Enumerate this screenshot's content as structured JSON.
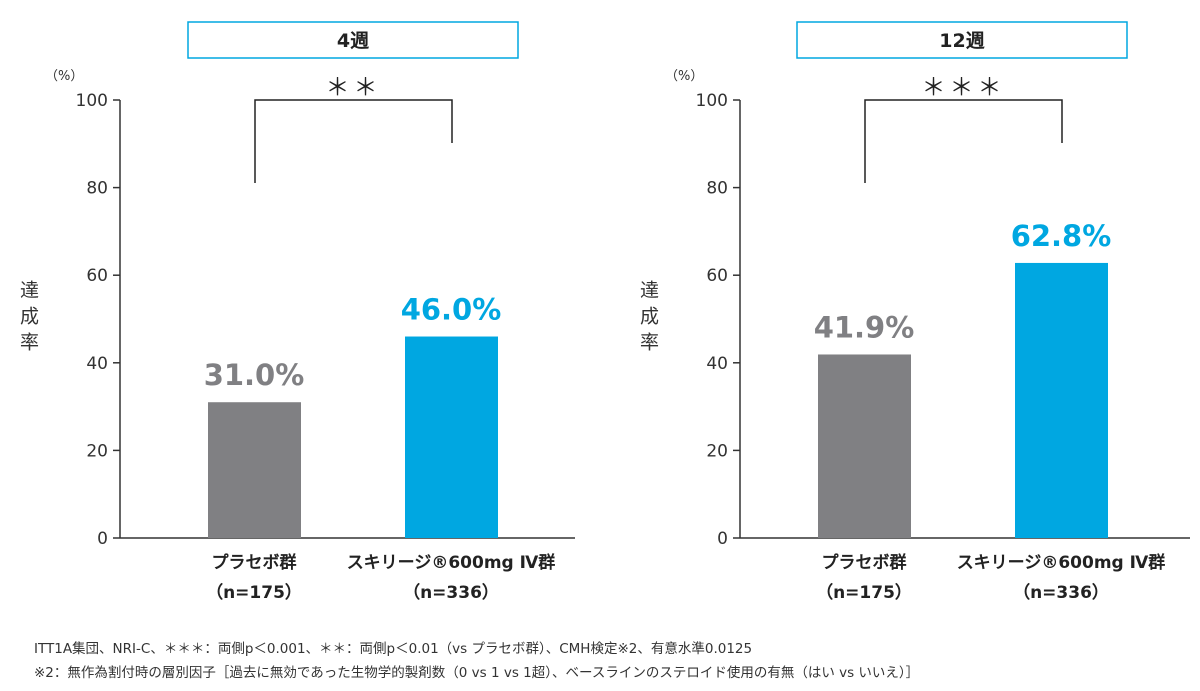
{
  "chart_data": [
    {
      "type": "bar",
      "title": "4週",
      "unit_label": "（%）",
      "ylabel": "達成率",
      "ylim": [
        0,
        100
      ],
      "yticks": [
        0,
        20,
        40,
        60,
        80,
        100
      ],
      "categories": [
        {
          "line1": "プラセボ群",
          "line2": "（n=175）"
        },
        {
          "line1": "スキリージ®600mg Ⅳ群",
          "line2": "（n=336）"
        }
      ],
      "values": [
        31.0,
        46.0
      ],
      "data_labels": [
        "31.0%",
        "46.0%"
      ],
      "significance": "＊＊",
      "grid": false
    },
    {
      "type": "bar",
      "title": "12週",
      "unit_label": "（%）",
      "ylabel": "達成率",
      "ylim": [
        0,
        100
      ],
      "yticks": [
        0,
        20,
        40,
        60,
        80,
        100
      ],
      "categories": [
        {
          "line1": "プラセボ群",
          "line2": "（n=175）"
        },
        {
          "line1": "スキリージ®600mg Ⅳ群",
          "line2": "（n=336）"
        }
      ],
      "values": [
        41.9,
        62.8
      ],
      "data_labels": [
        "41.9%",
        "62.8%"
      ],
      "significance": "＊＊＊",
      "grid": false
    }
  ],
  "colors": {
    "placebo": "#808083",
    "treatment": "#00a7e1",
    "title_border": "#00a7e1"
  },
  "footnotes": [
    "ITT1A集団、NRI-C、＊＊＊：両側p＜0.001、＊＊：両側p＜0.01（vs プラセボ群）、CMH検定※2、有意水準0.0125",
    "※2：無作為割付時の層別因子［過去に無効であった生物学的製剤数（0 vs 1 vs 1超）、ベースラインのステロイド使用の有無（はい vs いいえ）］"
  ]
}
